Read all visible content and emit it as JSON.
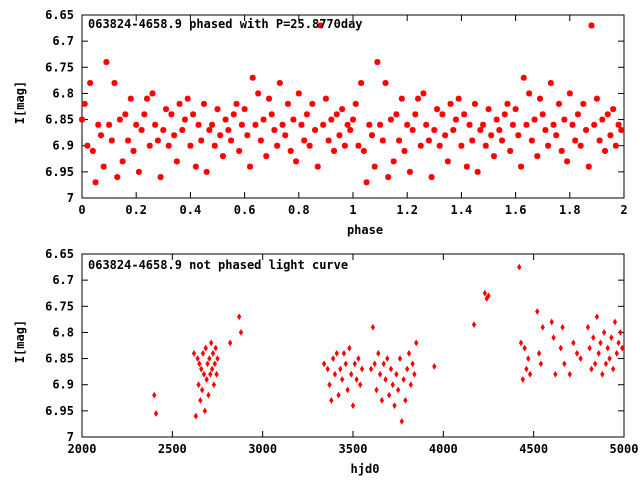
{
  "chart_data": [
    {
      "type": "scatter",
      "title": "063824-4658.9 phased with P=25.8770day",
      "xlabel": "phase",
      "ylabel": "I[mag]",
      "xlim": [
        0,
        2
      ],
      "ylim": [
        6.65,
        7
      ],
      "y_inverted": true,
      "xticks": [
        0,
        0.2,
        0.4,
        0.6,
        0.8,
        1,
        1.2,
        1.4,
        1.6,
        1.8,
        2
      ],
      "yticks": [
        6.65,
        6.7,
        6.75,
        6.8,
        6.85,
        6.9,
        6.95,
        7
      ],
      "grid": false,
      "color": "#ff0000",
      "marker": "asterisk",
      "note": "phase data shown twice (0-1 and 1-2)",
      "x": [
        0.0,
        0.01,
        0.02,
        0.03,
        0.04,
        0.05,
        0.06,
        0.07,
        0.08,
        0.09,
        0.1,
        0.11,
        0.12,
        0.13,
        0.14,
        0.15,
        0.16,
        0.17,
        0.18,
        0.19,
        0.2,
        0.21,
        0.22,
        0.23,
        0.24,
        0.25,
        0.26,
        0.27,
        0.28,
        0.29,
        0.3,
        0.31,
        0.32,
        0.33,
        0.34,
        0.35,
        0.36,
        0.37,
        0.38,
        0.39,
        0.4,
        0.41,
        0.42,
        0.43,
        0.44,
        0.45,
        0.46,
        0.47,
        0.48,
        0.49,
        0.5,
        0.51,
        0.52,
        0.53,
        0.54,
        0.55,
        0.56,
        0.57,
        0.58,
        0.59,
        0.6,
        0.61,
        0.62,
        0.63,
        0.64,
        0.65,
        0.66,
        0.67,
        0.68,
        0.69,
        0.7,
        0.71,
        0.72,
        0.73,
        0.74,
        0.75,
        0.76,
        0.77,
        0.78,
        0.79,
        0.8,
        0.81,
        0.82,
        0.83,
        0.84,
        0.85,
        0.86,
        0.87,
        0.88,
        0.89,
        0.9,
        0.91,
        0.92,
        0.93,
        0.94,
        0.95,
        0.96,
        0.97,
        0.98,
        0.99
      ],
      "y": [
        6.85,
        6.82,
        6.9,
        6.78,
        6.91,
        6.97,
        6.86,
        6.88,
        6.94,
        6.74,
        6.86,
        6.89,
        6.78,
        6.96,
        6.85,
        6.93,
        6.84,
        6.89,
        6.81,
        6.91,
        6.86,
        6.95,
        6.87,
        6.84,
        6.81,
        6.9,
        6.8,
        6.86,
        6.89,
        6.96,
        6.87,
        6.83,
        6.9,
        6.84,
        6.88,
        6.93,
        6.82,
        6.87,
        6.85,
        6.81,
        6.9,
        6.84,
        6.94,
        6.86,
        6.89,
        6.82,
        6.95,
        6.87,
        6.86,
        6.9,
        6.83,
        6.88,
        6.92,
        6.85,
        6.87,
        6.89,
        6.84,
        6.82,
        6.91,
        6.86,
        6.83,
        6.88,
        6.94,
        6.77,
        6.86,
        6.8,
        6.89,
        6.85,
        6.92,
        6.81,
        6.84,
        6.87,
        6.9,
        6.78,
        6.86,
        6.88,
        6.82,
        6.91,
        6.85,
        6.93,
        6.8,
        6.86,
        6.89,
        6.84,
        6.9,
        6.82,
        6.87,
        6.94,
        6.67,
        6.86,
        6.81,
        6.89,
        6.85,
        6.91,
        6.84,
        6.88,
        6.83,
        6.9,
        6.86,
        6.87
      ]
    },
    {
      "type": "scatter",
      "title": "063824-4658.9 not phased light curve",
      "xlabel": "hjd0",
      "ylabel": "I[mag]",
      "xlim": [
        2000,
        5000
      ],
      "ylim": [
        6.65,
        7
      ],
      "y_inverted": true,
      "xticks": [
        2000,
        2500,
        3000,
        3500,
        4000,
        4500,
        5000
      ],
      "yticks": [
        6.65,
        6.7,
        6.75,
        6.8,
        6.85,
        6.9,
        6.95,
        7
      ],
      "grid": false,
      "color": "#ff0000",
      "marker": "diamond",
      "x": [
        2400,
        2410,
        2620,
        2630,
        2640,
        2645,
        2650,
        2655,
        2660,
        2665,
        2670,
        2675,
        2680,
        2685,
        2690,
        2695,
        2700,
        2705,
        2710,
        2715,
        2720,
        2725,
        2730,
        2735,
        2740,
        2745,
        2750,
        2820,
        2870,
        2880,
        3340,
        3360,
        3370,
        3380,
        3390,
        3400,
        3410,
        3420,
        3430,
        3440,
        3450,
        3460,
        3470,
        3480,
        3490,
        3500,
        3510,
        3520,
        3530,
        3540,
        3550,
        3600,
        3610,
        3620,
        3630,
        3640,
        3650,
        3660,
        3670,
        3680,
        3690,
        3700,
        3710,
        3720,
        3730,
        3740,
        3750,
        3760,
        3770,
        3780,
        3790,
        3800,
        3810,
        3820,
        3830,
        3840,
        3850,
        3950,
        4170,
        4230,
        4240,
        4250,
        4420,
        4430,
        4440,
        4450,
        4460,
        4470,
        4480,
        4520,
        4530,
        4540,
        4550,
        4600,
        4610,
        4620,
        4650,
        4660,
        4670,
        4700,
        4720,
        4740,
        4760,
        4800,
        4810,
        4820,
        4830,
        4840,
        4850,
        4860,
        4870,
        4880,
        4890,
        4900,
        4910,
        4920,
        4930,
        4940,
        4950,
        4960,
        4970,
        4980,
        4990
      ],
      "y": [
        6.92,
        6.955,
        6.84,
        6.96,
        6.85,
        6.9,
        6.86,
        6.93,
        6.87,
        6.91,
        6.84,
        6.88,
        6.95,
        6.83,
        6.89,
        6.86,
        6.92,
        6.85,
        6.88,
        6.82,
        6.87,
        6.84,
        6.9,
        6.86,
        6.83,
        6.88,
        6.85,
        6.82,
        6.77,
        6.8,
        6.86,
        6.87,
        6.9,
        6.93,
        6.85,
        6.88,
        6.84,
        6.92,
        6.87,
        6.89,
        6.84,
        6.86,
        6.91,
        6.83,
        6.88,
        6.94,
        6.86,
        6.89,
        6.85,
        6.9,
        6.87,
        6.87,
        6.79,
        6.86,
        6.91,
        6.84,
        6.88,
        6.93,
        6.86,
        6.89,
        6.85,
        6.92,
        6.87,
        6.9,
        6.94,
        6.88,
        6.91,
        6.85,
        6.97,
        6.89,
        6.93,
        6.87,
        6.84,
        6.9,
        6.86,
        6.88,
        6.82,
        6.865,
        6.785,
        6.725,
        6.735,
        6.73,
        6.675,
        6.82,
        6.89,
        6.83,
        6.87,
        6.85,
        6.88,
        6.76,
        6.84,
        6.86,
        6.79,
        6.78,
        6.81,
        6.88,
        6.83,
        6.79,
        6.86,
        6.88,
        6.82,
        6.84,
        6.85,
        6.79,
        6.83,
        6.87,
        6.81,
        6.86,
        6.77,
        6.84,
        6.82,
        6.88,
        6.8,
        6.86,
        6.83,
        6.85,
        6.81,
        6.87,
        6.78,
        6.84,
        6.82,
        6.8,
        6.83
      ]
    }
  ]
}
